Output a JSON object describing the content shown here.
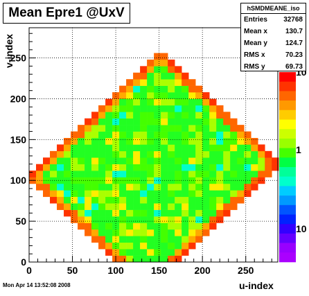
{
  "title": "Mean Epre1 @UxV",
  "timestamp": "Mon Apr 14 13:52:08 2008",
  "stats": {
    "name": "hSMDMEANE_iso",
    "rows": [
      {
        "label": "Entries",
        "value": "32768"
      },
      {
        "label": "Mean x",
        "value": "130.7"
      },
      {
        "label": "Mean y",
        "value": "124.7"
      },
      {
        "label": "RMS x",
        "value": "70.23"
      },
      {
        "label": "RMS y",
        "value": "69.73"
      }
    ]
  },
  "chart_data": {
    "type": "heatmap",
    "xlabel": "u-index",
    "ylabel": "v-index",
    "xlim": [
      0,
      287
    ],
    "ylim": [
      0,
      287
    ],
    "x_ticks": [
      0,
      50,
      100,
      150,
      200,
      250
    ],
    "y_ticks": [
      0,
      50,
      100,
      150,
      200,
      250
    ],
    "bin_size": 8,
    "grid": true,
    "z_scale": "log",
    "color_scale_labels": [
      "10",
      "1",
      "10"
    ],
    "colors": {
      "edge": "#ff6600",
      "edge_alt": "#ff3300",
      "outer": "#ffaa00",
      "yellow": "#ffee00",
      "lime": "#aaff00",
      "green": "#22ff22",
      "green_alt": "#44ff00",
      "cyan": "#00ffcc",
      "blue": "#0033ff"
    }
  }
}
